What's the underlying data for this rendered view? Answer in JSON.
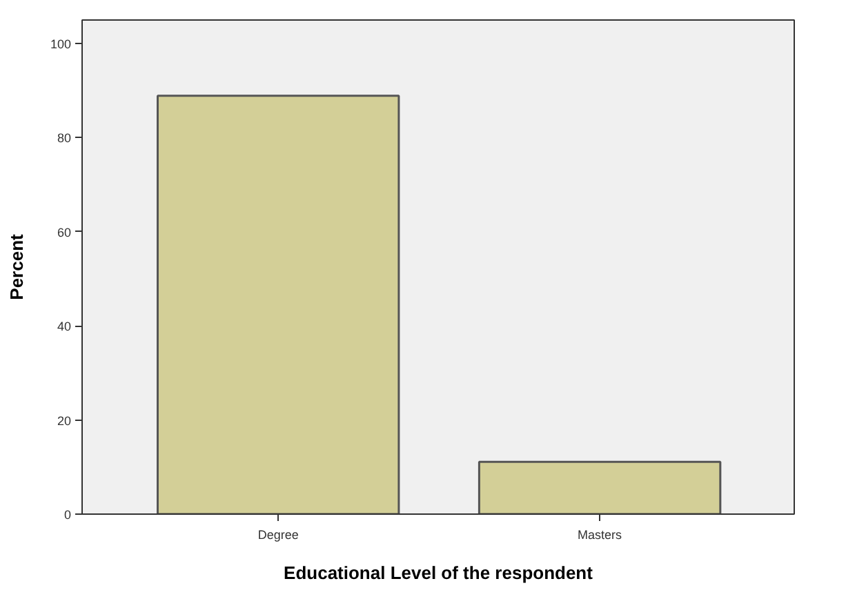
{
  "chart_data": {
    "type": "bar",
    "categories": [
      "Degree",
      "Masters"
    ],
    "values": [
      88.9,
      11.1
    ],
    "color": "#d3cf97",
    "xlabel": "Educational Level of the respondent",
    "ylabel": "Percent",
    "ylim": [
      0,
      105
    ],
    "yticks": [
      0,
      20,
      40,
      60,
      80,
      100
    ]
  }
}
